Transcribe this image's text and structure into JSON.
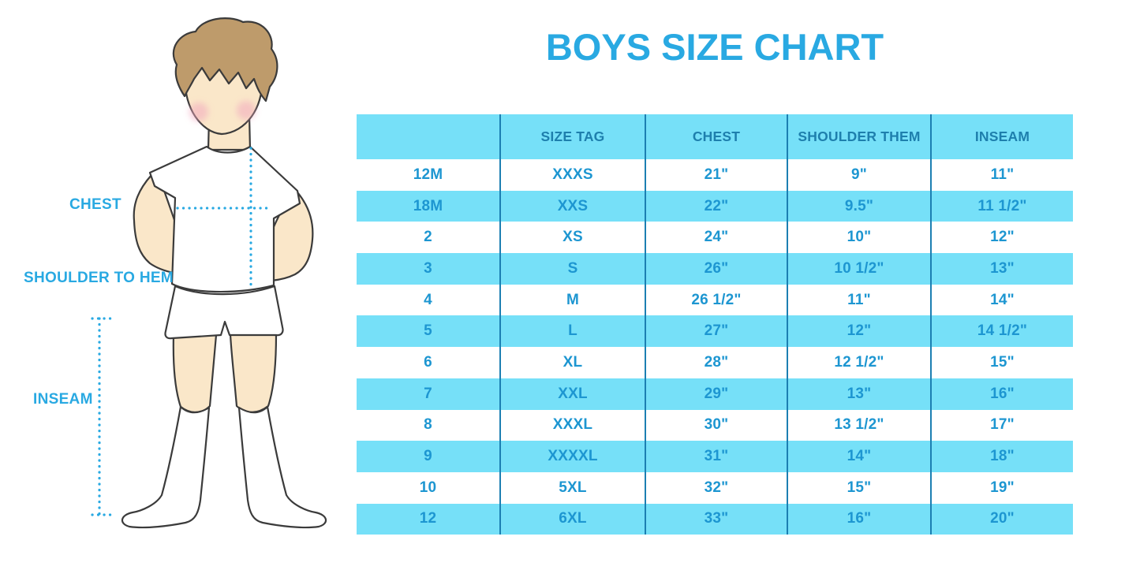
{
  "chart_data": {
    "type": "table",
    "title": "BOYS SIZE CHART",
    "headers": [
      "",
      "SIZE TAG",
      "CHEST",
      "SHOULDER THEM",
      "INSEAM"
    ],
    "rows": [
      [
        "12M",
        "XXXS",
        "21\"",
        "9\"",
        "11\""
      ],
      [
        "18M",
        "XXS",
        "22\"",
        "9.5\"",
        "11 1/2\""
      ],
      [
        "2",
        "XS",
        "24\"",
        "10\"",
        "12\""
      ],
      [
        "3",
        "S",
        "26\"",
        "10 1/2\"",
        "13\""
      ],
      [
        "4",
        "M",
        "26 1/2\"",
        "11\"",
        "14\""
      ],
      [
        "5",
        "L",
        "27\"",
        "12\"",
        "14 1/2\""
      ],
      [
        "6",
        "XL",
        "28\"",
        "12 1/2\"",
        "15\""
      ],
      [
        "7",
        "XXL",
        "29\"",
        "13\"",
        "16\""
      ],
      [
        "8",
        "XXXL",
        "30\"",
        "13 1/2\"",
        "17\""
      ],
      [
        "9",
        "XXXXL",
        "31\"",
        "14\"",
        "18\""
      ],
      [
        "10",
        "5XL",
        "32\"",
        "15\"",
        "19\""
      ],
      [
        "12",
        "6XL",
        "33\"",
        "16\"",
        "20\""
      ]
    ],
    "layout": {
      "header_background": "light blue band",
      "striping": "alternating rows: white, light blue (first data row white)",
      "legend_position": "none",
      "grid": "vertical column dividers only"
    }
  },
  "figure": {
    "labels": {
      "chest": "CHEST",
      "shoulder_to_hem": "SHOULDER TO HEM",
      "inseam": "INSEAM"
    }
  },
  "colors": {
    "accent": "#29A9E2",
    "stripe_bg": "#76E0F8",
    "header_text": "#1E7FAD",
    "cell_text": "#1D96D1",
    "divider": "#1C7FB2",
    "skin": "#FAE7C9",
    "hair": "#BE9B6B",
    "cheek": "#F2A8BE",
    "outline": "#3B3B3B"
  }
}
